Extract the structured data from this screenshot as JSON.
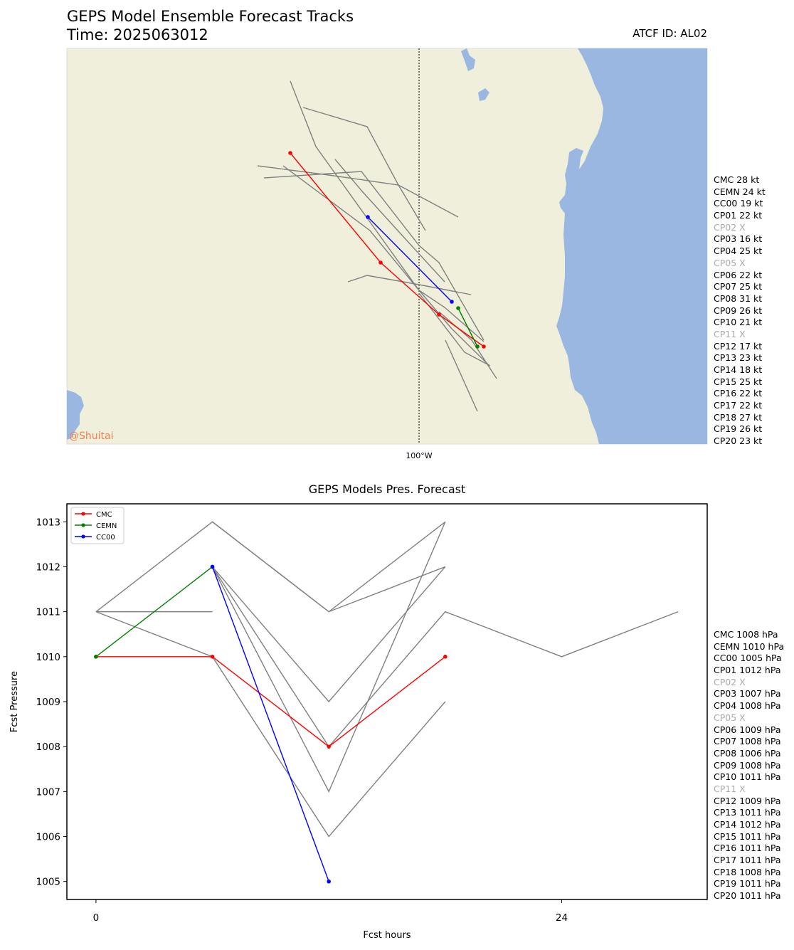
{
  "header": {
    "title": "GEPS Model Ensemble Forecast Tracks",
    "time": "Time: 2025063012",
    "atcf": "ATCF ID: AL02"
  },
  "map": {
    "lon_label": "100°W",
    "watermark": "@Shuitai",
    "colors": {
      "land": "#efefdb",
      "water": "#99b7e1",
      "watermark": "#f08050"
    }
  },
  "tracks_legend": [
    "CMC 28 kt",
    "CEMN 24 kt",
    "CC00 19 kt",
    "CP01 22 kt",
    "CP02 X",
    "CP03 16 kt",
    "CP04 25 kt",
    "CP05 X",
    "CP06 22 kt",
    "CP07 25 kt",
    "CP08 31 kt",
    "CP09 26 kt",
    "CP10 21 kt",
    "CP11 X",
    "CP12 17 kt",
    "CP13 23 kt",
    "CP14 18 kt",
    "CP15 25 kt",
    "CP16 22 kt",
    "CP17 22 kt",
    "CP18 27 kt",
    "CP19 26 kt",
    "CP20 23 kt"
  ],
  "pressure_legend": [
    "CMC 1008 hPa",
    "CEMN 1010 hPa",
    "CC00 1005 hPa",
    "CP01 1012 hPa",
    "CP02 X",
    "CP03 1007 hPa",
    "CP04 1008 hPa",
    "CP05 X",
    "CP06 1009 hPa",
    "CP07 1008 hPa",
    "CP08 1006 hPa",
    "CP09 1008 hPa",
    "CP10 1011 hPa",
    "CP11 X",
    "CP12 1009 hPa",
    "CP13 1011 hPa",
    "CP14 1012 hPa",
    "CP15 1011 hPa",
    "CP16 1011 hPa",
    "CP17 1011 hPa",
    "CP18 1008 hPa",
    "CP19 1011 hPa",
    "CP20 1011 hPa"
  ],
  "chart_data": {
    "type": "line",
    "title": "GEPS Models Pres. Forecast",
    "xlabel": "Fcst hours",
    "ylabel": "Fcst Pressure",
    "xlim": [
      -1.5,
      31.5
    ],
    "ylim": [
      1004.6,
      1013.4
    ],
    "xticks": [
      0,
      24
    ],
    "yticks": [
      1005,
      1006,
      1007,
      1008,
      1009,
      1010,
      1011,
      1012,
      1013
    ],
    "legend_location": "upper-left",
    "series": [
      {
        "name": "CMC",
        "color": "#ff0000",
        "markers": true,
        "points": [
          [
            0,
            1010
          ],
          [
            6,
            1010
          ],
          [
            12,
            1008
          ],
          [
            18,
            1010
          ]
        ]
      },
      {
        "name": "CEMN",
        "color": "#008000",
        "markers": true,
        "points": [
          [
            0,
            1010
          ],
          [
            6,
            1012
          ]
        ]
      },
      {
        "name": "CC00",
        "color": "#0000ff",
        "markers": true,
        "points": [
          [
            6,
            1012
          ],
          [
            12,
            1005
          ]
        ]
      },
      {
        "color": "#808080",
        "points": [
          [
            0,
            1011
          ],
          [
            6,
            1013
          ],
          [
            12,
            1011
          ],
          [
            18,
            1013
          ]
        ]
      },
      {
        "color": "#808080",
        "points": [
          [
            6,
            1013
          ],
          [
            12,
            1011
          ],
          [
            18,
            1012
          ]
        ]
      },
      {
        "color": "#808080",
        "points": [
          [
            0,
            1011
          ],
          [
            6,
            1011
          ]
        ]
      },
      {
        "color": "#808080",
        "points": [
          [
            0,
            1011
          ],
          [
            6,
            1010
          ],
          [
            12,
            1006
          ],
          [
            18,
            1009
          ]
        ]
      },
      {
        "color": "#808080",
        "points": [
          [
            6,
            1012
          ],
          [
            12,
            1009
          ],
          [
            18,
            1012
          ]
        ]
      },
      {
        "color": "#808080",
        "points": [
          [
            6,
            1012
          ],
          [
            12,
            1007
          ],
          [
            18,
            1013
          ]
        ]
      },
      {
        "color": "#808080",
        "points": [
          [
            6,
            1012
          ],
          [
            12,
            1008
          ],
          [
            18,
            1011
          ],
          [
            24,
            1010
          ],
          [
            30,
            1011
          ]
        ]
      }
    ]
  }
}
